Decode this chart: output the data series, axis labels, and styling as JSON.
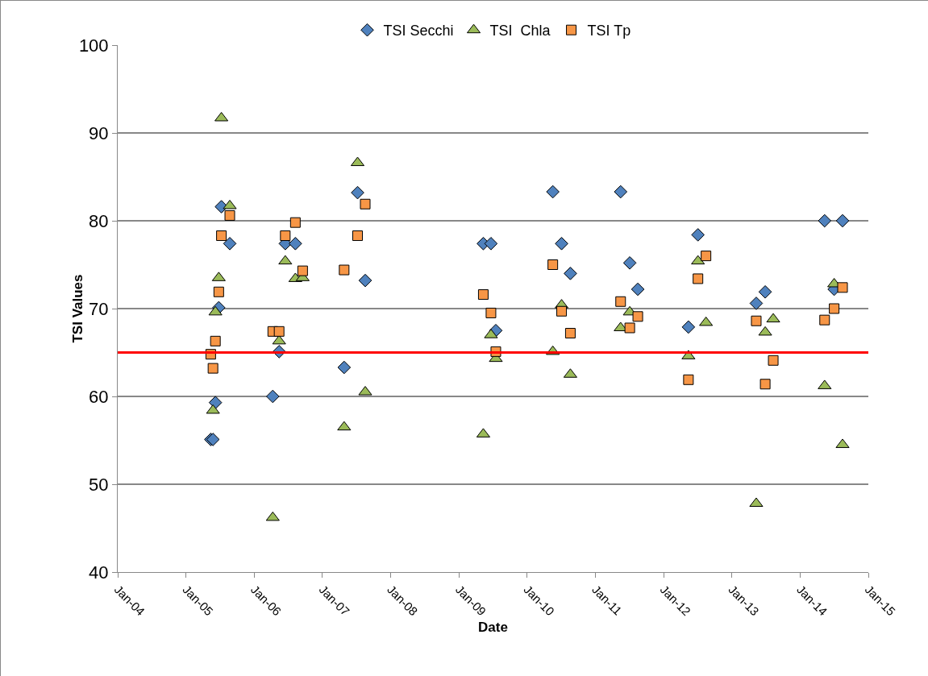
{
  "chart_data": {
    "type": "scatter",
    "xlabel": "Date",
    "ylabel": "TSI Values",
    "x": [
      "2005-05-13",
      "2005-05-25",
      "2005-06-07",
      "2005-06-25",
      "2005-07-09",
      "2005-08-23",
      "2006-04-10",
      "2006-05-14",
      "2006-06-16",
      "2006-08-09",
      "2006-09-17",
      "2007-04-27",
      "2007-07-08",
      "2007-08-18",
      "2009-05-11",
      "2009-06-21",
      "2009-07-17",
      "2010-05-18",
      "2010-07-04",
      "2010-08-20",
      "2011-05-16",
      "2011-07-04",
      "2011-08-16",
      "2012-05-13",
      "2012-07-03",
      "2012-08-15",
      "2013-05-11",
      "2013-06-28",
      "2013-08-10",
      "2014-05-12",
      "2014-07-02",
      "2014-08-16"
    ],
    "series": [
      {
        "name": "TSI Secchi",
        "color": "#4f81bd",
        "marker": "diamond",
        "values": [
          55.1,
          55.1,
          59.3,
          70.1,
          81.6,
          77.4,
          60.0,
          65.1,
          77.4,
          77.4,
          null,
          63.3,
          83.2,
          73.2,
          77.4,
          77.4,
          67.5,
          83.3,
          77.4,
          74.0,
          83.3,
          75.2,
          72.2,
          67.9,
          78.4,
          null,
          70.6,
          71.9,
          null,
          80.0,
          72.2,
          80.0
        ]
      },
      {
        "name": "TSI  Chla",
        "color": "#9bbb59",
        "marker": "triangle",
        "values": [
          null,
          58.4,
          69.6,
          73.5,
          91.7,
          81.7,
          46.2,
          66.3,
          75.4,
          73.4,
          73.5,
          56.5,
          86.6,
          60.5,
          55.7,
          67.0,
          64.3,
          65.1,
          70.4,
          62.5,
          67.8,
          69.6,
          null,
          64.6,
          75.4,
          68.4,
          47.8,
          67.3,
          68.8,
          61.2,
          72.8,
          54.5
        ]
      },
      {
        "name": "TSI Tp",
        "color": "#f79646",
        "marker": "square",
        "values": [
          64.8,
          63.2,
          66.3,
          71.9,
          78.3,
          80.6,
          67.4,
          67.4,
          78.3,
          79.8,
          74.3,
          74.4,
          78.3,
          81.9,
          71.6,
          69.5,
          65.1,
          75.0,
          69.7,
          67.2,
          70.8,
          67.8,
          69.1,
          61.9,
          73.4,
          76.0,
          68.6,
          61.4,
          64.1,
          68.7,
          70.0,
          72.4
        ]
      }
    ],
    "xlim": [
      "2004-01-01",
      "2015-01-01"
    ],
    "xticks": [
      {
        "value": "2004-01-01",
        "label": "Jan-04"
      },
      {
        "value": "2005-01-01",
        "label": "Jan-05"
      },
      {
        "value": "2006-01-01",
        "label": "Jan-06"
      },
      {
        "value": "2007-01-01",
        "label": "Jan-07"
      },
      {
        "value": "2008-01-01",
        "label": "Jan-08"
      },
      {
        "value": "2009-01-01",
        "label": "Jan-09"
      },
      {
        "value": "2010-01-01",
        "label": "Jan-10"
      },
      {
        "value": "2011-01-01",
        "label": "Jan-11"
      },
      {
        "value": "2012-01-01",
        "label": "Jan-12"
      },
      {
        "value": "2013-01-01",
        "label": "Jan-13"
      },
      {
        "value": "2014-01-01",
        "label": "Jan-14"
      },
      {
        "value": "2015-01-01",
        "label": "Jan-15"
      }
    ],
    "ylim": [
      40,
      100
    ],
    "yticks": [
      40,
      50,
      60,
      70,
      80,
      90,
      100
    ],
    "ref_lines": [
      {
        "axis": "y",
        "value": 65,
        "color": "#ff0000"
      }
    ],
    "grid": "y",
    "legend": "top"
  }
}
